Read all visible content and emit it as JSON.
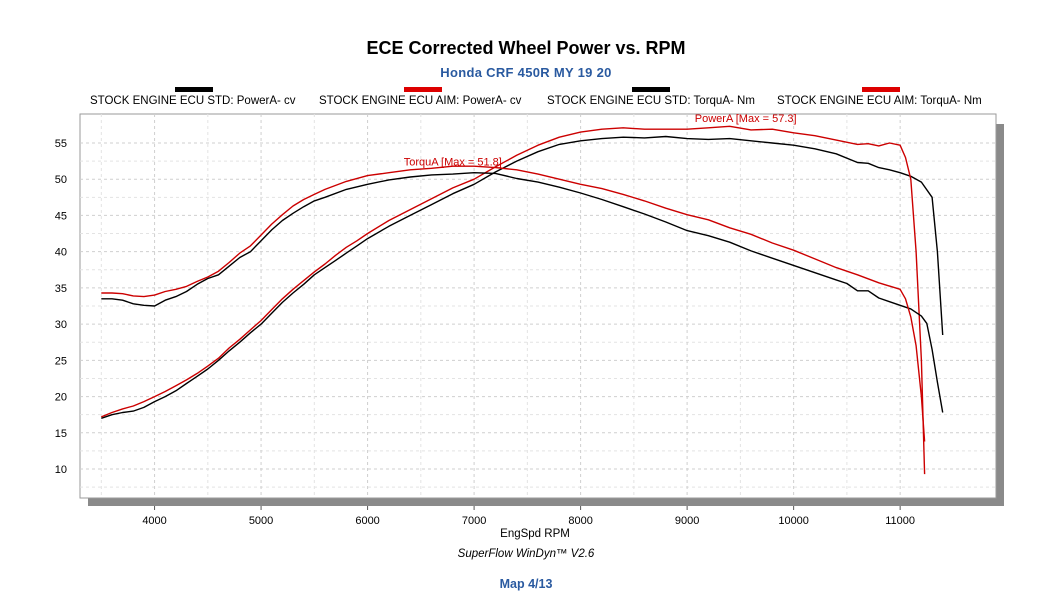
{
  "chart_data": {
    "type": "line",
    "title": "ECE Corrected Wheel Power vs. RPM",
    "subtitle": "Honda CRF 450R MY 19 20",
    "xlabel": "EngSpd  RPM",
    "ylabel": "",
    "xlim": [
      3300,
      11900
    ],
    "ylim": [
      6,
      59
    ],
    "xticks": [
      4000,
      5000,
      6000,
      7000,
      8000,
      9000,
      10000,
      11000
    ],
    "yticks": [
      10,
      15,
      20,
      25,
      30,
      35,
      40,
      45,
      50,
      55
    ],
    "grid": true,
    "legend_position": "top",
    "annotations": [
      {
        "text": "PowerA [Max = 57.3]",
        "x": 9550,
        "y": 57.9,
        "color": "#cc0000"
      },
      {
        "text": "TorquA [Max = 51.8]",
        "x": 6800,
        "y": 51.9,
        "color": "#cc0000"
      }
    ],
    "series": [
      {
        "name": "STOCK ENGINE ECU STD: PowerA- cv",
        "color": "#000000",
        "x": [
          3500,
          3600,
          3700,
          3800,
          3900,
          4000,
          4100,
          4200,
          4300,
          4400,
          4500,
          4600,
          4700,
          4800,
          4900,
          5000,
          5100,
          5200,
          5300,
          5400,
          5500,
          5600,
          5700,
          5800,
          5900,
          6000,
          6200,
          6400,
          6600,
          6800,
          7000,
          7200,
          7400,
          7600,
          7800,
          8000,
          8200,
          8400,
          8600,
          8800,
          9000,
          9200,
          9400,
          9600,
          9800,
          10000,
          10200,
          10400,
          10600,
          10700,
          10800,
          10900,
          11000,
          11100,
          11200,
          11300,
          11350,
          11400
        ],
        "y": [
          17.0,
          17.5,
          17.8,
          18.0,
          18.5,
          19.3,
          20.0,
          20.8,
          21.8,
          22.8,
          23.8,
          25.0,
          26.3,
          27.5,
          28.8,
          30.0,
          31.5,
          33.0,
          34.3,
          35.5,
          36.8,
          37.8,
          38.8,
          39.8,
          40.8,
          41.8,
          43.5,
          45.0,
          46.5,
          48.0,
          49.3,
          51.0,
          52.5,
          53.8,
          54.8,
          55.3,
          55.6,
          55.8,
          55.7,
          55.9,
          55.6,
          55.5,
          55.6,
          55.3,
          55.0,
          54.7,
          54.2,
          53.5,
          52.3,
          52.2,
          51.6,
          51.3,
          50.9,
          50.4,
          49.6,
          47.5,
          40.0,
          28.5
        ]
      },
      {
        "name": "STOCK ENGINE ECU AIM: PowerA- cv",
        "color": "#cc0000",
        "x": [
          3500,
          3600,
          3700,
          3800,
          3900,
          4000,
          4100,
          4200,
          4300,
          4400,
          4500,
          4600,
          4700,
          4800,
          4900,
          5000,
          5100,
          5200,
          5300,
          5400,
          5500,
          5600,
          5700,
          5800,
          5900,
          6000,
          6200,
          6400,
          6600,
          6800,
          7000,
          7200,
          7400,
          7600,
          7800,
          8000,
          8200,
          8400,
          8600,
          8800,
          9000,
          9200,
          9400,
          9600,
          9800,
          10000,
          10200,
          10400,
          10600,
          10700,
          10800,
          10900,
          11000,
          11050,
          11100,
          11150,
          11200,
          11230
        ],
        "y": [
          17.2,
          17.8,
          18.3,
          18.7,
          19.3,
          20.0,
          20.7,
          21.5,
          22.3,
          23.2,
          24.2,
          25.3,
          26.7,
          27.9,
          29.2,
          30.5,
          32.0,
          33.5,
          34.8,
          36.0,
          37.2,
          38.3,
          39.5,
          40.6,
          41.5,
          42.5,
          44.3,
          45.8,
          47.3,
          48.8,
          50.0,
          51.7,
          53.3,
          54.7,
          55.8,
          56.5,
          56.9,
          57.1,
          56.9,
          56.9,
          56.9,
          57.1,
          57.3,
          56.8,
          56.9,
          56.4,
          56.0,
          55.4,
          54.8,
          54.9,
          54.6,
          55.0,
          54.7,
          53.0,
          50.0,
          40.0,
          25.0,
          9.3
        ]
      },
      {
        "name": "STOCK ENGINE ECU STD: TorquA- Nm",
        "color": "#000000",
        "x": [
          3500,
          3600,
          3700,
          3800,
          3900,
          4000,
          4100,
          4200,
          4300,
          4400,
          4500,
          4600,
          4700,
          4800,
          4900,
          5000,
          5100,
          5200,
          5300,
          5400,
          5500,
          5600,
          5800,
          6000,
          6200,
          6400,
          6600,
          6800,
          7000,
          7200,
          7400,
          7600,
          7800,
          8000,
          8200,
          8400,
          8600,
          8800,
          9000,
          9200,
          9400,
          9600,
          9800,
          10000,
          10200,
          10400,
          10500,
          10600,
          10700,
          10800,
          10900,
          11000,
          11100,
          11200,
          11250,
          11300,
          11350,
          11400
        ],
        "y": [
          33.5,
          33.5,
          33.3,
          32.8,
          32.6,
          32.5,
          33.3,
          33.8,
          34.5,
          35.5,
          36.3,
          36.8,
          38.0,
          39.2,
          40.0,
          41.5,
          43.0,
          44.3,
          45.3,
          46.2,
          47.0,
          47.5,
          48.6,
          49.3,
          49.9,
          50.3,
          50.6,
          50.7,
          50.9,
          50.8,
          50.1,
          49.6,
          48.9,
          48.1,
          47.2,
          46.2,
          45.2,
          44.1,
          42.9,
          42.2,
          41.3,
          40.1,
          39.1,
          38.1,
          37.1,
          36.1,
          35.6,
          34.6,
          34.6,
          33.6,
          33.1,
          32.6,
          32.1,
          31.1,
          30.1,
          26.5,
          22.0,
          17.8
        ]
      },
      {
        "name": "STOCK ENGINE ECU AIM: TorquA- Nm",
        "color": "#cc0000",
        "x": [
          3500,
          3600,
          3700,
          3800,
          3900,
          4000,
          4100,
          4200,
          4300,
          4400,
          4500,
          4600,
          4700,
          4800,
          4900,
          5000,
          5100,
          5200,
          5300,
          5400,
          5500,
          5600,
          5800,
          6000,
          6200,
          6400,
          6600,
          6800,
          7000,
          7200,
          7400,
          7600,
          7800,
          8000,
          8200,
          8400,
          8600,
          8800,
          9000,
          9200,
          9400,
          9600,
          9800,
          10000,
          10200,
          10400,
          10600,
          10800,
          11000,
          11050,
          11100,
          11150,
          11200,
          11230
        ],
        "y": [
          34.3,
          34.3,
          34.2,
          33.9,
          33.8,
          34.0,
          34.5,
          34.8,
          35.2,
          35.9,
          36.5,
          37.3,
          38.5,
          39.8,
          40.8,
          42.3,
          43.8,
          45.1,
          46.3,
          47.2,
          47.9,
          48.6,
          49.7,
          50.5,
          50.9,
          51.3,
          51.5,
          51.8,
          51.8,
          51.6,
          51.3,
          50.7,
          50.0,
          49.3,
          48.7,
          47.9,
          47.0,
          46.0,
          45.1,
          44.4,
          43.3,
          42.4,
          41.2,
          40.2,
          39.0,
          37.8,
          36.8,
          35.7,
          34.8,
          33.5,
          31.0,
          27.0,
          20.0,
          13.8
        ]
      }
    ]
  },
  "legend": [
    {
      "label": "STOCK ENGINE ECU STD: PowerA- cv",
      "color": "#000000"
    },
    {
      "label": "STOCK ENGINE ECU AIM: PowerA- cv",
      "color": "#dd0000"
    },
    {
      "label": "STOCK ENGINE ECU STD: TorquA- Nm",
      "color": "#000000"
    },
    {
      "label": "STOCK ENGINE ECU AIM: TorquA- Nm",
      "color": "#dd0000"
    }
  ],
  "footer": {
    "software": "SuperFlow WinDyn™ V2.6",
    "map": "Map 4/13"
  }
}
